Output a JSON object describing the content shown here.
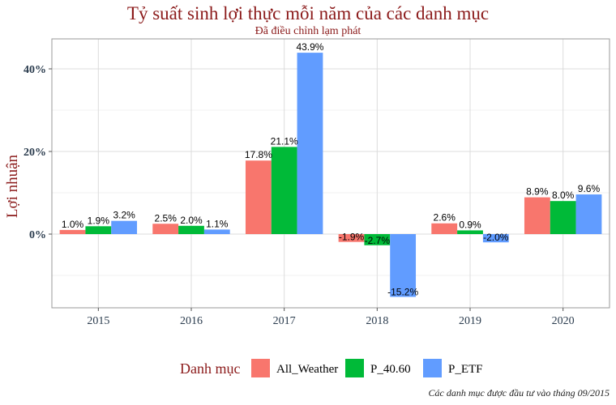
{
  "chart_data": {
    "type": "bar",
    "title": "Tỷ suất sinh lợi thực mỗi năm của các danh mục",
    "subtitle": "Đã điều chỉnh lạm phát",
    "ylabel": "Lợi nhuận",
    "xlabel": "",
    "categories": [
      "2015",
      "2016",
      "2017",
      "2018",
      "2019",
      "2020"
    ],
    "series": [
      {
        "name": "All_Weather",
        "color": "#f8766d",
        "values": [
          1.0,
          2.5,
          17.8,
          -1.9,
          2.6,
          8.9
        ],
        "labels": [
          "1.0%",
          "2.5%",
          "17.8%",
          "-1.9%",
          "2.6%",
          "8.9%"
        ]
      },
      {
        "name": "P_40.60",
        "color": "#00ba38",
        "values": [
          1.9,
          2.0,
          21.1,
          -2.7,
          0.9,
          8.0
        ],
        "labels": [
          "1.9%",
          "2.0%",
          "21.1%",
          "-2.7%",
          "0.9%",
          "8.0%"
        ]
      },
      {
        "name": "P_ETF",
        "color": "#619cff",
        "values": [
          3.2,
          1.1,
          43.9,
          -15.2,
          -2.0,
          9.6
        ],
        "labels": [
          "3.2%",
          "1.1%",
          "43.9%",
          "-15.2%",
          "-2.0%",
          "9.6%"
        ]
      }
    ],
    "yticks": [
      0,
      20,
      40
    ],
    "ytick_labels": [
      "0%",
      "20%",
      "40%"
    ],
    "ylim": [
      -18,
      49
    ],
    "grid": true,
    "legend": {
      "title": "Danh mục",
      "position": "bottom"
    },
    "caption": "Các danh mục được đầu tư vào tháng 09/2015"
  }
}
